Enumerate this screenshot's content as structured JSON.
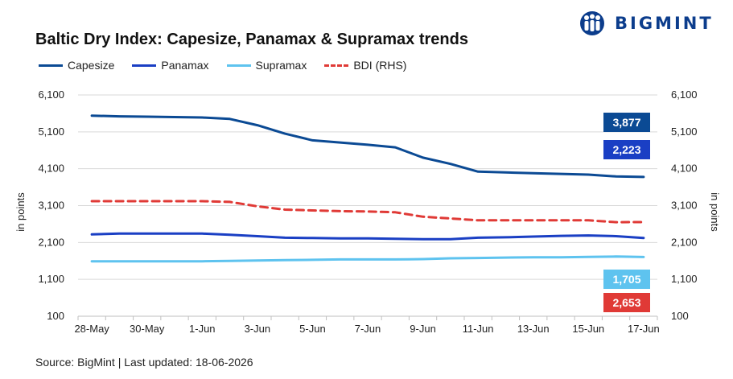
{
  "header": {
    "title": "Baltic Dry Index: Capesize, Panamax & Supramax trends",
    "logo_text": "BIGMINT"
  },
  "footer": {
    "source": "Source: BigMint | Last updated: 18-06-2026"
  },
  "chart_data": {
    "type": "line",
    "title": "Baltic Dry Index: Capesize, Panamax & Supramax trends",
    "ylabel": "in points",
    "y2label": "in points",
    "ylim": [
      100,
      6100
    ],
    "y2lim": [
      100,
      6100
    ],
    "yticks": [
      "6,100",
      "5,100",
      "4,100",
      "3,100",
      "2,100",
      "1,100",
      "100"
    ],
    "x": [
      "28-May",
      "29-May",
      "30-May",
      "31-May",
      "1-Jun",
      "2-Jun",
      "3-Jun",
      "4-Jun",
      "5-Jun",
      "6-Jun",
      "7-Jun",
      "8-Jun",
      "9-Jun",
      "10-Jun",
      "11-Jun",
      "12-Jun",
      "13-Jun",
      "14-Jun",
      "15-Jun",
      "16-Jun",
      "17-Jun"
    ],
    "xtick_labels": [
      "28-May",
      "30-May",
      "1-Jun",
      "3-Jun",
      "5-Jun",
      "7-Jun",
      "9-Jun",
      "11-Jun",
      "13-Jun",
      "15-Jun",
      "17-Jun"
    ],
    "grid": true,
    "legend_position": "top-left",
    "series": [
      {
        "name": "Capesize",
        "color": "#0b4a94",
        "style": "solid",
        "axis": "left",
        "values": [
          5540,
          5520,
          5510,
          5500,
          5490,
          5450,
          5280,
          5050,
          4870,
          4810,
          4750,
          4680,
          4400,
          4230,
          4020,
          4000,
          3980,
          3960,
          3940,
          3890,
          3877
        ],
        "end_label": "3,877"
      },
      {
        "name": "Panamax",
        "color": "#1a3fc4",
        "style": "solid",
        "axis": "left",
        "values": [
          2320,
          2340,
          2340,
          2340,
          2340,
          2310,
          2270,
          2230,
          2220,
          2210,
          2210,
          2200,
          2190,
          2190,
          2230,
          2240,
          2260,
          2280,
          2290,
          2270,
          2223
        ],
        "end_label": "2,223"
      },
      {
        "name": "Supramax",
        "color": "#5ec3ef",
        "style": "solid",
        "axis": "left",
        "values": [
          1590,
          1590,
          1590,
          1590,
          1590,
          1600,
          1610,
          1620,
          1630,
          1640,
          1640,
          1640,
          1650,
          1670,
          1680,
          1690,
          1700,
          1700,
          1710,
          1720,
          1705
        ],
        "end_label": "1,705"
      },
      {
        "name": "BDI (RHS)",
        "color": "#e03a36",
        "style": "dashed",
        "axis": "right",
        "values": [
          3220,
          3220,
          3220,
          3220,
          3220,
          3200,
          3080,
          2990,
          2970,
          2950,
          2940,
          2920,
          2800,
          2750,
          2700,
          2700,
          2700,
          2700,
          2700,
          2650,
          2653
        ],
        "end_label": "2,653"
      }
    ]
  }
}
